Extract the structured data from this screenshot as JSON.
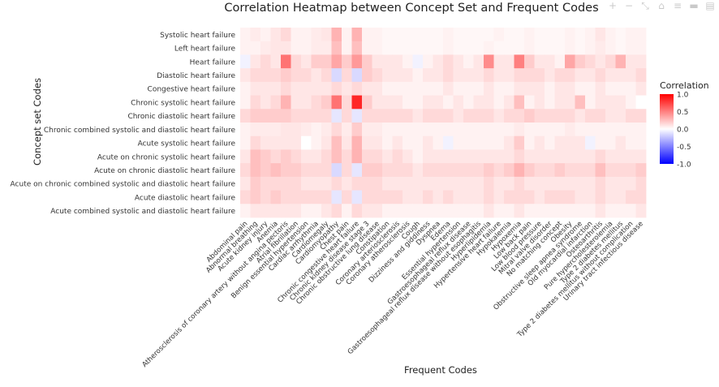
{
  "chart_data": {
    "type": "heatmap",
    "title": "Correlation Heatmap between Concept Set and Frequent Codes",
    "xlabel": "Frequent Codes",
    "ylabel": "Concept set Codes",
    "colorbar": {
      "title": "Correlation",
      "ticks": [
        "1.0",
        "0.5",
        "0.0",
        "-0.5",
        "-1.0"
      ],
      "range": [
        -1,
        1
      ],
      "colors": {
        "low": "#0000ff",
        "mid": "#ffffff",
        "high": "#ff0000"
      }
    },
    "y": [
      "Systolic heart failure",
      "Left heart failure",
      "Heart failure",
      "Diastolic heart failure",
      "Congestive heart failure",
      "Chronic systolic heart failure",
      "Chronic diastolic heart failure",
      "Chronic combined systolic and diastolic heart failure",
      "Acute systolic heart failure",
      "Acute on chronic systolic heart failure",
      "Acute on chronic diastolic heart failure",
      "Acute on chronic combined systolic and diastolic heart failure",
      "Acute diastolic heart failure",
      "Acute combined systolic and diastolic heart failure"
    ],
    "x": [
      "Abdominal pain",
      "Abnormal breathing",
      "Acute kidney injury",
      "Anemia",
      "Atherosclerosis of coronary artery without angina pectoris",
      "Atrial fibrillation",
      "Benign essential hypertension",
      "Cardiac arrhythmia",
      "Cardiomegaly",
      "Cardiomyopathy",
      "Chest pain",
      "Chronic congestive heart failure",
      "Chronic kidney disease stage 3",
      "Chronic obstructive lung disease",
      "Constipation",
      "Coronary arteriosclerosis",
      "Coronary atherosclerosis",
      "Cough",
      "Dizziness and giddiness",
      "Dyspnea",
      "Edema",
      "Essential hypertension",
      "Gastroesophageal reflux disease",
      "Gastroesophageal reflux disease without esophagitis",
      "Hyperlipidemia",
      "Hypertensive heart failure",
      "Hypokalemia",
      "Hypoxemia",
      "Low back pain",
      "Low blood pressure",
      "Mitral valve disorder",
      "No matching concept",
      "Obesity",
      "Obstructive sleep apnea syndrome",
      "Old myocardial infarction",
      "Osteoarthritis",
      "Pure hypercholesterolemia",
      "Type 2 diabetes mellitus",
      "Type 2 diabetes mellitus without complication",
      "Urinary tract infectious disease"
    ],
    "z": [
      [
        0.05,
        0.08,
        0.05,
        0.1,
        0.15,
        0.05,
        0.05,
        0.08,
        0.1,
        0.3,
        0.05,
        0.3,
        0.05,
        0.05,
        0.03,
        0.03,
        0.03,
        0.03,
        0.03,
        0.03,
        0.05,
        0.03,
        0.03,
        0.03,
        0.03,
        0.05,
        0.03,
        0.03,
        0.05,
        0.03,
        0.03,
        0.03,
        0.05,
        0.03,
        0.05,
        0.1,
        0.05,
        0.03,
        0.05,
        0.05
      ],
      [
        0.05,
        0.05,
        0.08,
        0.1,
        0.1,
        0.05,
        0.05,
        0.08,
        0.08,
        0.25,
        0.05,
        0.25,
        0.05,
        0.05,
        0.03,
        0.03,
        0.03,
        0.03,
        0.03,
        0.03,
        0.05,
        0.03,
        0.03,
        0.03,
        0.05,
        0.03,
        0.03,
        0.03,
        0.05,
        0.03,
        0.03,
        0.03,
        0.05,
        0.03,
        0.05,
        0.08,
        0.05,
        0.03,
        0.05,
        0.05
      ],
      [
        -0.05,
        0.1,
        0.15,
        0.1,
        0.55,
        0.15,
        0.1,
        0.2,
        0.2,
        0.35,
        0.2,
        0.4,
        0.2,
        0.1,
        0.1,
        0.1,
        0.05,
        -0.05,
        0.05,
        0.1,
        0.15,
        0.1,
        0.05,
        0.1,
        0.45,
        0.1,
        0.1,
        0.5,
        0.2,
        0.1,
        0.1,
        0.05,
        0.35,
        0.2,
        0.15,
        0.1,
        0.15,
        0.3,
        0.1,
        0.1
      ],
      [
        0.1,
        0.15,
        0.15,
        0.15,
        0.2,
        0.15,
        0.15,
        0.1,
        0.15,
        -0.15,
        0.15,
        -0.15,
        0.2,
        0.15,
        0.1,
        0.1,
        0.1,
        0.05,
        0.1,
        0.1,
        0.15,
        0.1,
        0.1,
        0.1,
        0.15,
        0.1,
        0.1,
        0.15,
        0.15,
        0.15,
        0.1,
        0.15,
        0.15,
        0.1,
        0.1,
        0.15,
        0.1,
        0.1,
        0.1,
        0.15
      ],
      [
        0.05,
        0.1,
        0.1,
        0.1,
        0.15,
        0.1,
        0.1,
        0.1,
        0.1,
        0.15,
        0.1,
        0.15,
        0.1,
        0.1,
        0.05,
        0.05,
        0.05,
        0.05,
        0.05,
        0.05,
        0.1,
        0.05,
        0.05,
        0.05,
        0.1,
        0.05,
        0.05,
        0.1,
        0.1,
        0.1,
        0.05,
        0.1,
        0.1,
        0.05,
        0.05,
        0.1,
        0.05,
        0.05,
        0.05,
        0.1
      ],
      [
        0.05,
        0.15,
        0.1,
        0.15,
        0.3,
        0.1,
        0.1,
        0.15,
        0.2,
        0.55,
        0.15,
        0.85,
        0.2,
        0.1,
        0.1,
        0.1,
        0.05,
        0.05,
        0.1,
        0.1,
        0.05,
        0.1,
        0.05,
        0.1,
        0.1,
        0.05,
        0.1,
        0.25,
        0.05,
        0.1,
        0.05,
        0.1,
        0.1,
        0.25,
        0.05,
        0.1,
        0.1,
        0.1,
        0.05,
        0.0
      ],
      [
        0.15,
        0.2,
        0.2,
        0.2,
        0.2,
        0.15,
        0.15,
        0.15,
        0.15,
        -0.1,
        0.15,
        -0.1,
        0.15,
        0.15,
        0.15,
        0.15,
        0.15,
        0.1,
        0.15,
        0.15,
        0.15,
        0.1,
        0.15,
        0.15,
        0.15,
        0.1,
        0.15,
        0.15,
        0.2,
        0.15,
        0.15,
        0.15,
        0.15,
        0.1,
        0.15,
        0.15,
        0.1,
        0.1,
        0.15,
        0.15
      ],
      [
        0.05,
        0.08,
        0.08,
        0.08,
        0.1,
        0.1,
        0.08,
        0.05,
        0.08,
        0.15,
        0.08,
        0.2,
        0.08,
        0.08,
        0.05,
        0.05,
        0.05,
        0.05,
        0.05,
        0.05,
        0.05,
        0.05,
        0.05,
        0.05,
        0.05,
        0.05,
        0.05,
        0.08,
        0.05,
        0.05,
        0.05,
        0.05,
        0.08,
        0.05,
        0.05,
        0.05,
        0.05,
        0.05,
        0.05,
        0.05
      ],
      [
        0.05,
        0.15,
        0.1,
        0.1,
        0.1,
        0.1,
        0.0,
        0.05,
        0.1,
        0.25,
        0.1,
        0.3,
        0.1,
        0.1,
        0.05,
        0.1,
        0.05,
        0.05,
        0.1,
        0.05,
        -0.05,
        0.05,
        0.05,
        0.05,
        0.05,
        0.05,
        0.1,
        0.2,
        0.05,
        0.1,
        0.05,
        0.1,
        0.1,
        0.1,
        -0.05,
        0.05,
        0.05,
        0.1,
        0.05,
        0.05
      ],
      [
        0.1,
        0.25,
        0.2,
        0.15,
        0.2,
        0.15,
        0.1,
        0.1,
        0.15,
        0.25,
        0.15,
        0.3,
        0.15,
        0.15,
        0.1,
        0.15,
        0.1,
        0.05,
        0.1,
        0.1,
        0.1,
        0.1,
        0.1,
        0.1,
        0.1,
        0.1,
        0.1,
        0.15,
        0.1,
        0.1,
        0.1,
        0.1,
        0.1,
        0.1,
        0.1,
        0.15,
        0.1,
        0.1,
        0.1,
        0.1
      ],
      [
        0.15,
        0.25,
        0.2,
        0.25,
        0.2,
        0.2,
        0.15,
        0.15,
        0.15,
        -0.15,
        0.15,
        -0.1,
        0.2,
        0.2,
        0.15,
        0.15,
        0.15,
        0.1,
        0.15,
        0.15,
        0.15,
        0.15,
        0.15,
        0.15,
        0.2,
        0.15,
        0.2,
        0.3,
        0.2,
        0.15,
        0.15,
        0.2,
        0.15,
        0.15,
        0.15,
        0.25,
        0.15,
        0.15,
        0.15,
        0.2
      ],
      [
        0.1,
        0.2,
        0.15,
        0.15,
        0.15,
        0.15,
        0.1,
        0.1,
        0.1,
        0.15,
        0.1,
        0.15,
        0.15,
        0.15,
        0.1,
        0.1,
        0.1,
        0.1,
        0.1,
        0.1,
        0.1,
        0.1,
        0.1,
        0.1,
        0.15,
        0.1,
        0.1,
        0.15,
        0.1,
        0.1,
        0.1,
        0.1,
        0.1,
        0.1,
        0.1,
        0.15,
        0.1,
        0.1,
        0.1,
        0.15
      ],
      [
        0.15,
        0.2,
        0.15,
        0.2,
        0.15,
        0.15,
        0.15,
        0.15,
        0.15,
        -0.1,
        0.15,
        -0.1,
        0.15,
        0.15,
        0.15,
        0.15,
        0.1,
        0.1,
        0.15,
        0.1,
        0.15,
        0.1,
        0.1,
        0.1,
        0.15,
        0.1,
        0.15,
        0.15,
        0.15,
        0.1,
        0.15,
        0.15,
        0.15,
        0.1,
        0.1,
        0.15,
        0.1,
        0.1,
        0.15,
        0.15
      ],
      [
        0.05,
        0.1,
        0.1,
        0.1,
        0.1,
        0.1,
        0.05,
        0.05,
        0.1,
        0.15,
        0.05,
        0.15,
        0.1,
        0.1,
        0.05,
        0.05,
        0.05,
        0.05,
        0.05,
        0.05,
        0.05,
        0.05,
        0.05,
        0.05,
        0.1,
        0.05,
        0.05,
        0.1,
        0.05,
        0.05,
        0.05,
        0.05,
        0.05,
        0.05,
        0.05,
        0.1,
        0.05,
        0.05,
        0.05,
        0.1
      ]
    ]
  },
  "modebar": {
    "icons": [
      "camera-icon",
      "zoom-icon",
      "pan-icon",
      "select-icon",
      "lasso-icon",
      "zoom-in-icon",
      "zoom-out-icon",
      "autoscale-icon",
      "reset-axes-icon",
      "spike-icon",
      "compare-icon",
      "plotly-logo-icon"
    ],
    "glyphs": [
      "⌕",
      "+",
      "−",
      "⤡",
      "⌂",
      "≡",
      "▬",
      "▤"
    ]
  }
}
